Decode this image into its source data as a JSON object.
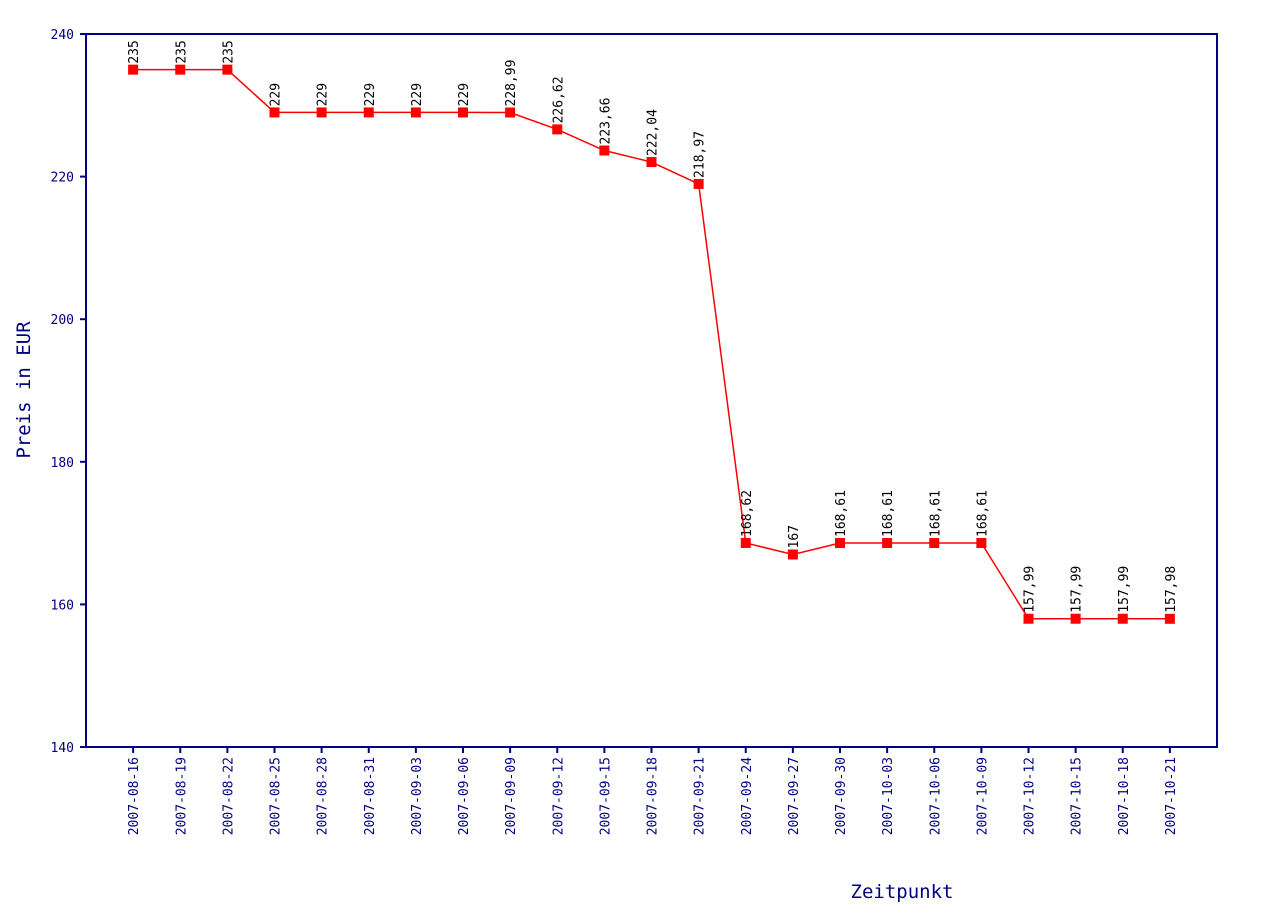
{
  "chart_data": {
    "type": "line",
    "x_label": "Zeitpunkt",
    "y_label": "Preis in EUR",
    "categories": [
      "2007-08-16",
      "2007-08-19",
      "2007-08-22",
      "2007-08-25",
      "2007-08-28",
      "2007-08-31",
      "2007-09-03",
      "2007-09-06",
      "2007-09-09",
      "2007-09-12",
      "2007-09-15",
      "2007-09-18",
      "2007-09-21",
      "2007-09-24",
      "2007-09-27",
      "2007-09-30",
      "2007-10-03",
      "2007-10-06",
      "2007-10-09",
      "2007-10-12",
      "2007-10-15",
      "2007-10-18",
      "2007-10-21"
    ],
    "values": [
      235,
      235,
      235,
      229,
      229,
      229,
      229,
      229,
      228.99,
      226.62,
      223.66,
      222.04,
      218.97,
      168.62,
      167,
      168.61,
      168.61,
      168.61,
      168.61,
      157.99,
      157.99,
      157.99,
      157.98
    ],
    "value_labels": [
      "235",
      "235",
      "235",
      "229",
      "229",
      "229",
      "229",
      "229",
      "228,99",
      "226,62",
      "223,66",
      "222,04",
      "218,97",
      "168,62",
      "167",
      "168,61",
      "168,61",
      "168,61",
      "168,61",
      "157,99",
      "157,99",
      "157,99",
      "157,98"
    ],
    "color": "#ff0000",
    "axis_color": "#000080",
    "ylim": [
      140,
      240
    ],
    "yticks": [
      140,
      160,
      180,
      200,
      220,
      240
    ]
  }
}
